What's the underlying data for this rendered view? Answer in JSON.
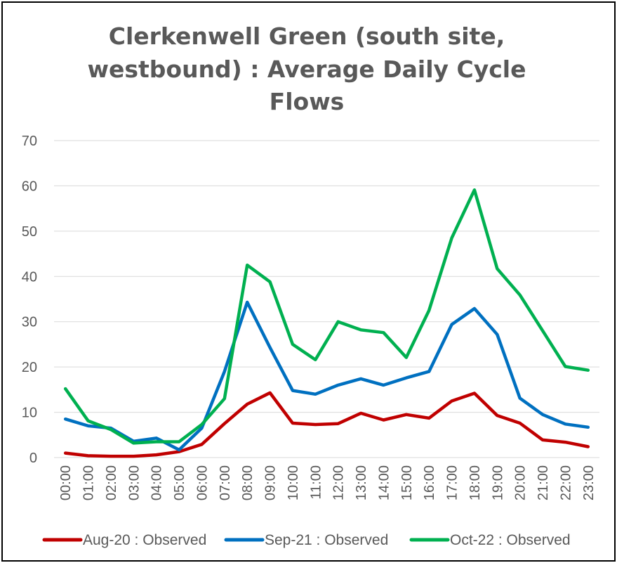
{
  "chart_data": {
    "type": "line",
    "title_lines": [
      "Clerkenwell Green (south site,",
      "westbound) : Average Daily Cycle",
      "Flows"
    ],
    "categories": [
      "00:00",
      "01:00",
      "02:00",
      "03:00",
      "04:00",
      "05:00",
      "06:00",
      "07:00",
      "08:00",
      "09:00",
      "10:00",
      "11:00",
      "12:00",
      "13:00",
      "14:00",
      "15:00",
      "16:00",
      "17:00",
      "18:00",
      "19:00",
      "20:00",
      "21:00",
      "22:00",
      "23:00"
    ],
    "ylim": [
      0,
      70
    ],
    "yticks": [
      "0",
      "10",
      "20",
      "30",
      "40",
      "50",
      "60",
      "70"
    ],
    "grid": true,
    "legend_position": "bottom",
    "series": [
      {
        "name": "Aug-20 : Observed",
        "color": "#c00000",
        "values": [
          1.0,
          0.4,
          0.3,
          0.3,
          0.6,
          1.3,
          2.9,
          7.5,
          11.8,
          14.3,
          7.6,
          7.3,
          7.5,
          9.8,
          8.3,
          9.5,
          8.7,
          12.5,
          14.2,
          9.3,
          7.6,
          3.9,
          3.4,
          2.4
        ]
      },
      {
        "name": "Sep-21 : Observed",
        "color": "#0070c0",
        "values": [
          8.5,
          7.0,
          6.5,
          3.6,
          4.3,
          1.7,
          6.5,
          19.0,
          34.3,
          24.3,
          14.8,
          14.0,
          16.0,
          17.4,
          16.0,
          17.6,
          19.0,
          29.4,
          32.9,
          27.2,
          13.1,
          9.5,
          7.4,
          6.7
        ]
      },
      {
        "name": "Oct-22 : Observed",
        "color": "#00b050",
        "values": [
          15.2,
          8.1,
          6.2,
          3.2,
          3.5,
          3.5,
          7.3,
          13.0,
          42.5,
          38.8,
          25.0,
          21.6,
          30.0,
          28.2,
          27.6,
          22.1,
          32.5,
          48.5,
          59.1,
          41.7,
          35.9,
          28.0,
          20.1,
          19.3
        ]
      }
    ]
  }
}
